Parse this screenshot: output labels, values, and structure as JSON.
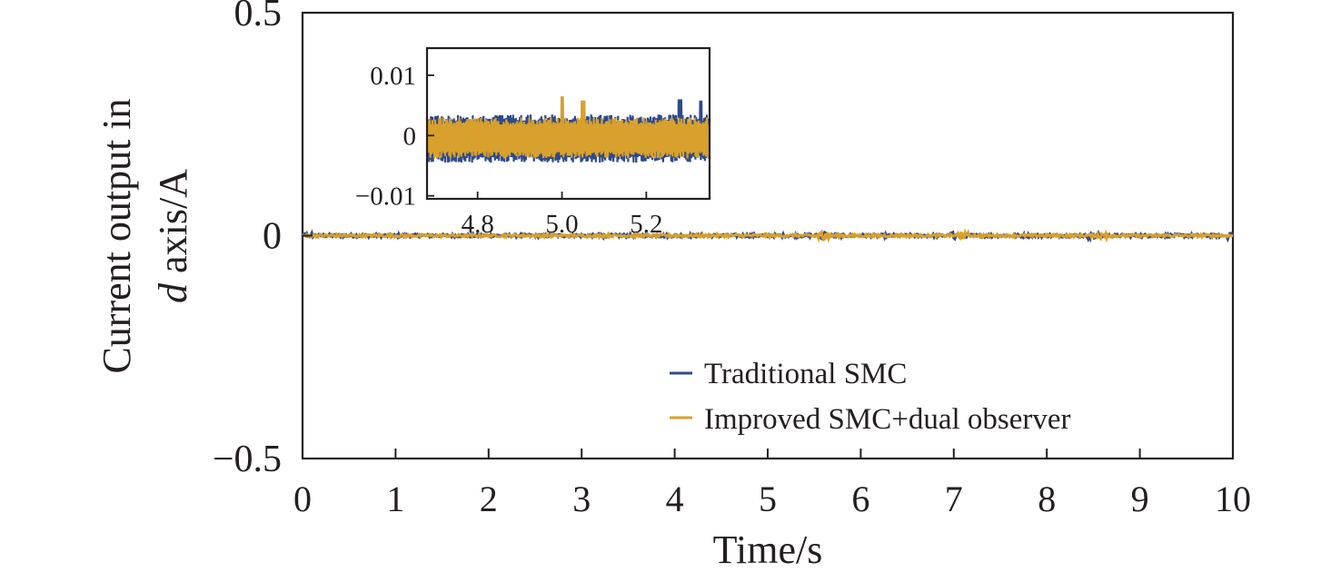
{
  "chart_data": {
    "type": "line",
    "xlabel": "Time/s",
    "ylabel": {
      "line1": "Current output in",
      "line2_italic": "d",
      "line2_rest": " axis/A"
    },
    "xlim": [
      0,
      10
    ],
    "ylim": [
      -0.5,
      0.5
    ],
    "x_ticks": [
      "0",
      "1",
      "2",
      "3",
      "4",
      "5",
      "6",
      "7",
      "8",
      "9",
      "10"
    ],
    "y_ticks": [
      {
        "value": 0.5,
        "label": "0.5"
      },
      {
        "value": 0,
        "label": "0"
      },
      {
        "value": -0.5,
        "label": "−0.5"
      }
    ],
    "grid": false,
    "legend_placement": "bottom-right",
    "series": [
      {
        "name": "Traditional SMC",
        "color": "#2e4a8c",
        "mean": 0.0,
        "noise_amplitude": 0.0035,
        "bumps": [
          {
            "x": 0.05,
            "amp": 0.003
          },
          {
            "x": 3.2,
            "amp": 0.003
          },
          {
            "x": 5.6,
            "amp": 0.005
          },
          {
            "x": 7.0,
            "amp": 0.004
          },
          {
            "x": 8.5,
            "amp": 0.004
          },
          {
            "x": 10.0,
            "amp": 0.004
          }
        ]
      },
      {
        "name": "Improved SMC+dual observer",
        "color": "#d8a02c",
        "mean": 0.0,
        "noise_amplitude": 0.003,
        "bumps": [
          {
            "x": 5.6,
            "amp": 0.006
          },
          {
            "x": 7.1,
            "amp": 0.004
          },
          {
            "x": 8.6,
            "amp": 0.004
          }
        ]
      }
    ],
    "inset": {
      "xlim": [
        4.68,
        5.35
      ],
      "ylim": [
        -0.0105,
        0.0145
      ],
      "x_ticks": [
        {
          "value": 4.8,
          "label": "4.8"
        },
        {
          "value": 5.0,
          "label": "5.0"
        },
        {
          "value": 5.2,
          "label": "5.2"
        }
      ],
      "y_ticks": [
        {
          "value": 0.01,
          "label": "0.01"
        },
        {
          "value": 0,
          "label": "0"
        },
        {
          "value": -0.01,
          "label": "−0.01"
        }
      ],
      "series": [
        {
          "name": "Traditional SMC",
          "low": -0.0045,
          "high": 0.0035,
          "spikes": [
            {
              "x": 5.28,
              "value": 0.006
            },
            {
              "x": 5.33,
              "value": 0.0058
            }
          ]
        },
        {
          "name": "Improved SMC+dual observer",
          "low": -0.0038,
          "high": 0.003,
          "spikes": [
            {
              "x": 5.0,
              "value": 0.0065
            },
            {
              "x": 5.05,
              "value": 0.0058
            }
          ]
        }
      ]
    }
  }
}
